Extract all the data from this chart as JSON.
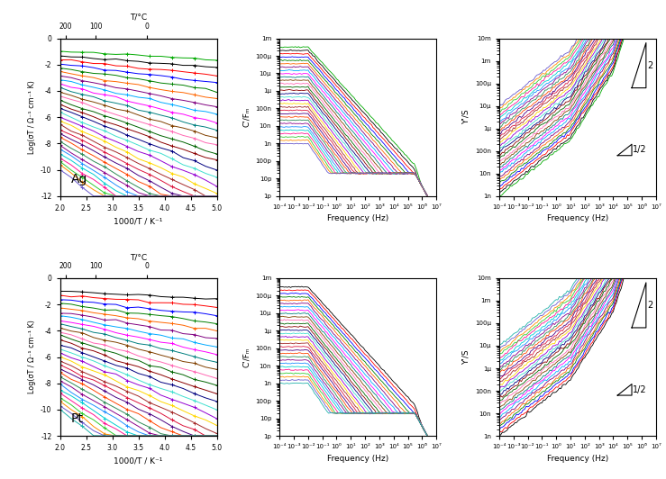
{
  "fig_width": 7.39,
  "fig_height": 5.32,
  "n_curves": 30,
  "colors": [
    "#000000",
    "#ff0000",
    "#0000ff",
    "#008000",
    "#ff6600",
    "#800080",
    "#00aaff",
    "#ff00ff",
    "#008080",
    "#804000",
    "#ff69b4",
    "#006400",
    "#8B0000",
    "#000080",
    "#40e0d0",
    "#9400D3",
    "#FFD700",
    "#A52A2A",
    "#DC143C",
    "#4B0082",
    "#FF4500",
    "#2E8B57",
    "#8B008B",
    "#1E90FF",
    "#00CED1",
    "#FF1493",
    "#32CD32",
    "#FF8C00",
    "#6A5ACD",
    "#20B2AA"
  ],
  "xlabel_arrhenius": "1000/T / K⁻¹",
  "ylabel_arrhenius": "Log(σT / Ω⁻¹ cm⁻¹ K)",
  "xlabel_freq": "Frequency (Hz)",
  "ylabel_C": "C'/Fₘ",
  "ylabel_Y": "Y'/S",
  "top_xlabel": "T/°C"
}
